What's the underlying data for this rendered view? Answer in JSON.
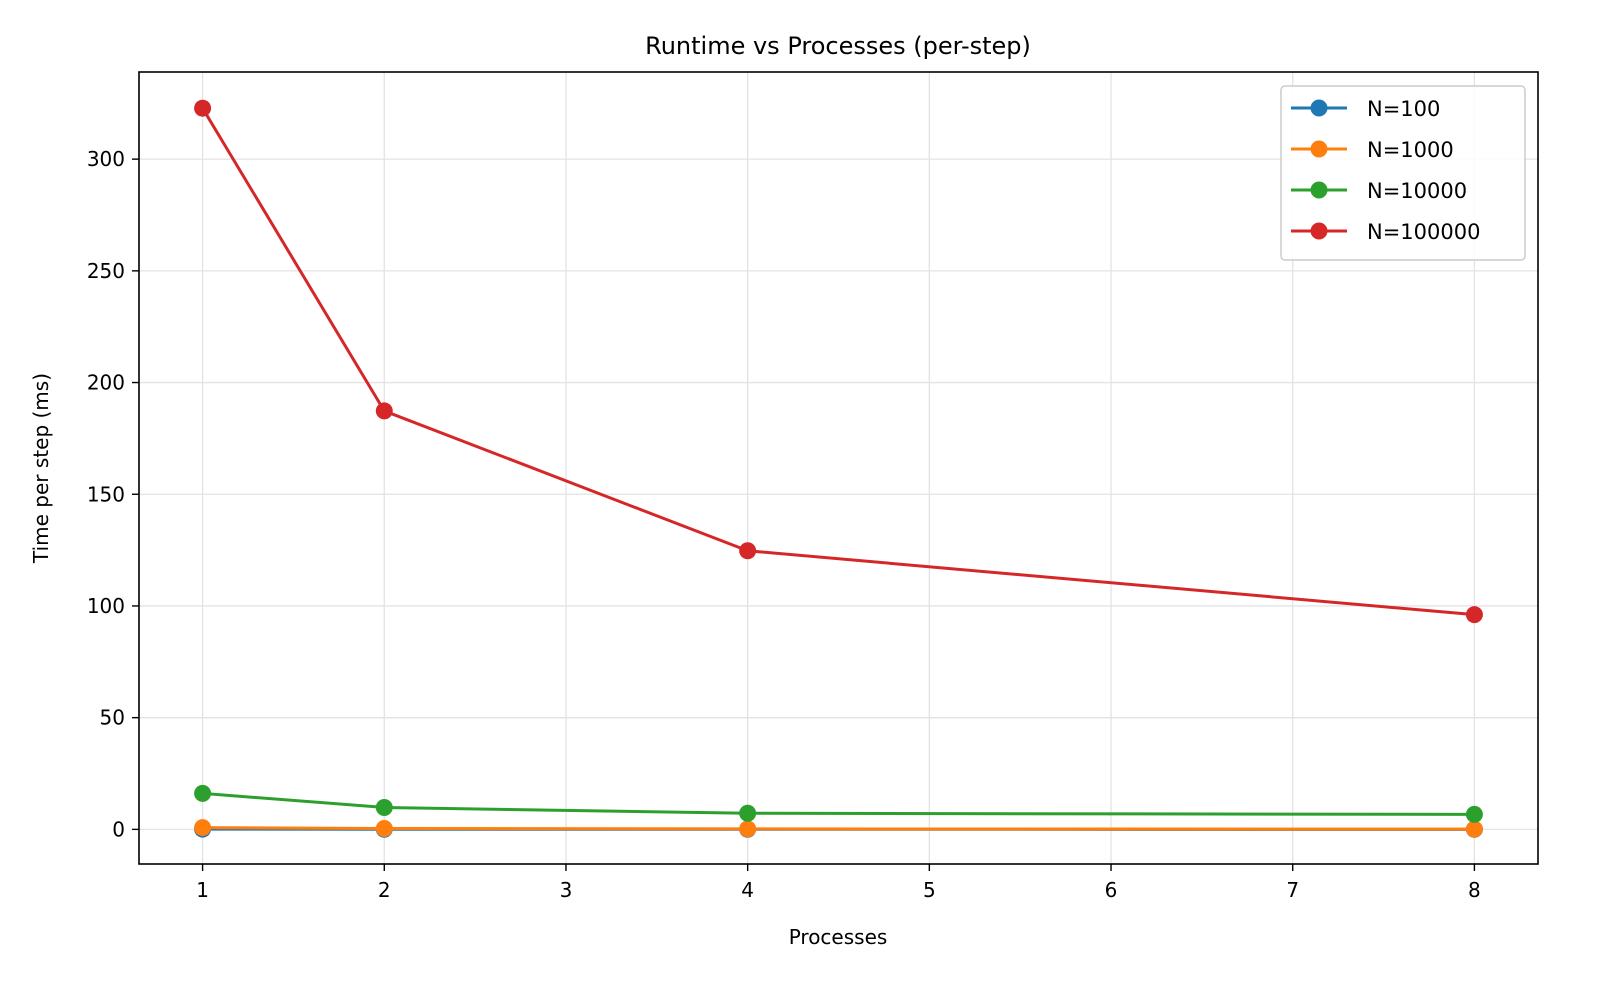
{
  "chart_data": {
    "type": "line",
    "title": "Runtime vs Processes (per-step)",
    "xlabel": "Processes",
    "ylabel": "Time per step (ms)",
    "x": [
      1,
      2,
      4,
      8
    ],
    "xlim": [
      0.65,
      8.35
    ],
    "ylim": [
      -15.5,
      339
    ],
    "xticks": [
      1,
      2,
      3,
      4,
      5,
      6,
      7,
      8
    ],
    "yticks": [
      0,
      50,
      100,
      150,
      200,
      250,
      300
    ],
    "grid": true,
    "legend_position": "upper right",
    "series": [
      {
        "name": "N=100",
        "color": "#1f77b4",
        "values": [
          0.1,
          0.05,
          0.03,
          0.02
        ]
      },
      {
        "name": "N=1000",
        "color": "#ff7f0e",
        "values": [
          0.8,
          0.4,
          0.2,
          0.1
        ]
      },
      {
        "name": "N=10000",
        "color": "#2ca02c",
        "values": [
          16.1,
          9.8,
          7.2,
          6.7
        ]
      },
      {
        "name": "N=100000",
        "color": "#d62728",
        "values": [
          322.8,
          187.3,
          124.7,
          96.1
        ]
      }
    ]
  }
}
